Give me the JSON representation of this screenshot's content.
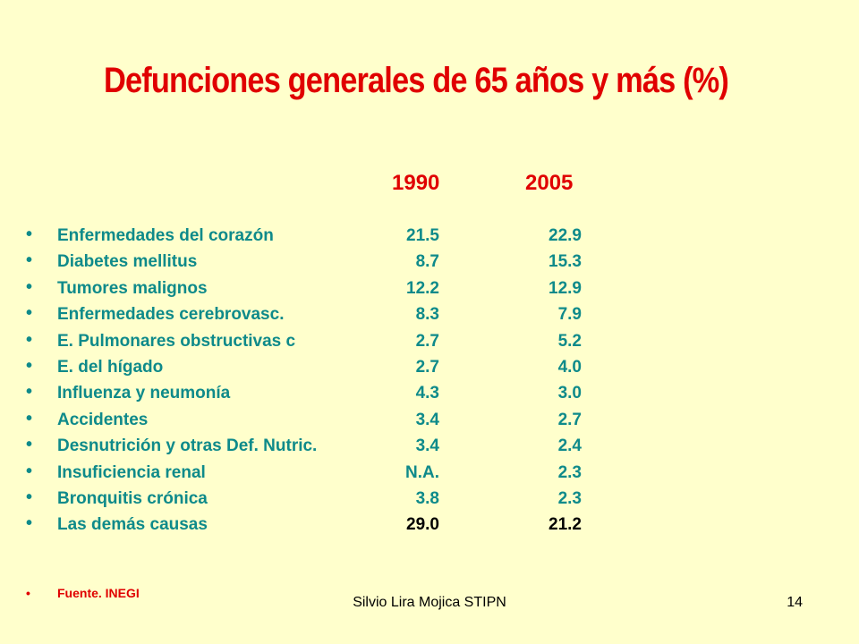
{
  "slide": {
    "title": "Defunciones generales de 65 años y más (%)",
    "years": [
      "1990",
      "2005"
    ],
    "bullet": "•",
    "rows": [
      {
        "cause": "Enfermedades del corazón",
        "y1990": "21.5",
        "y2005": "22.9"
      },
      {
        "cause": "Diabetes mellitus",
        "y1990": "8.7",
        "y2005": "15.3"
      },
      {
        "cause": "Tumores malignos",
        "y1990": "12.2",
        "y2005": "12.9"
      },
      {
        "cause": "Enfermedades cerebrovasc.",
        "y1990": "8.3",
        "y2005": "7.9"
      },
      {
        "cause": "E. Pulmonares obstructivas c",
        "y1990": "2.7",
        "y2005": "5.2"
      },
      {
        "cause": "E. del hígado",
        "y1990": "2.7",
        "y2005": "4.0"
      },
      {
        "cause": "Influenza y neumonía",
        "y1990": "4.3",
        "y2005": "3.0"
      },
      {
        "cause": "Accidentes",
        "y1990": "3.4",
        "y2005": "2.7"
      },
      {
        "cause": "Desnutrición y otras Def. Nutric.",
        "y1990": "3.4",
        "y2005": "2.4"
      },
      {
        "cause": "Insuficiencia renal",
        "y1990": "N.A.",
        "y2005": "2.3"
      },
      {
        "cause": "Bronquitis crónica",
        "y1990": "3.8",
        "y2005": "2.3"
      },
      {
        "cause": "Las demás causas",
        "y1990": "29.0",
        "y2005": "21.2"
      }
    ],
    "source": "Fuente. INEGI",
    "footer": "Silvio Lira Mojica STIPN",
    "page_number": "14"
  }
}
